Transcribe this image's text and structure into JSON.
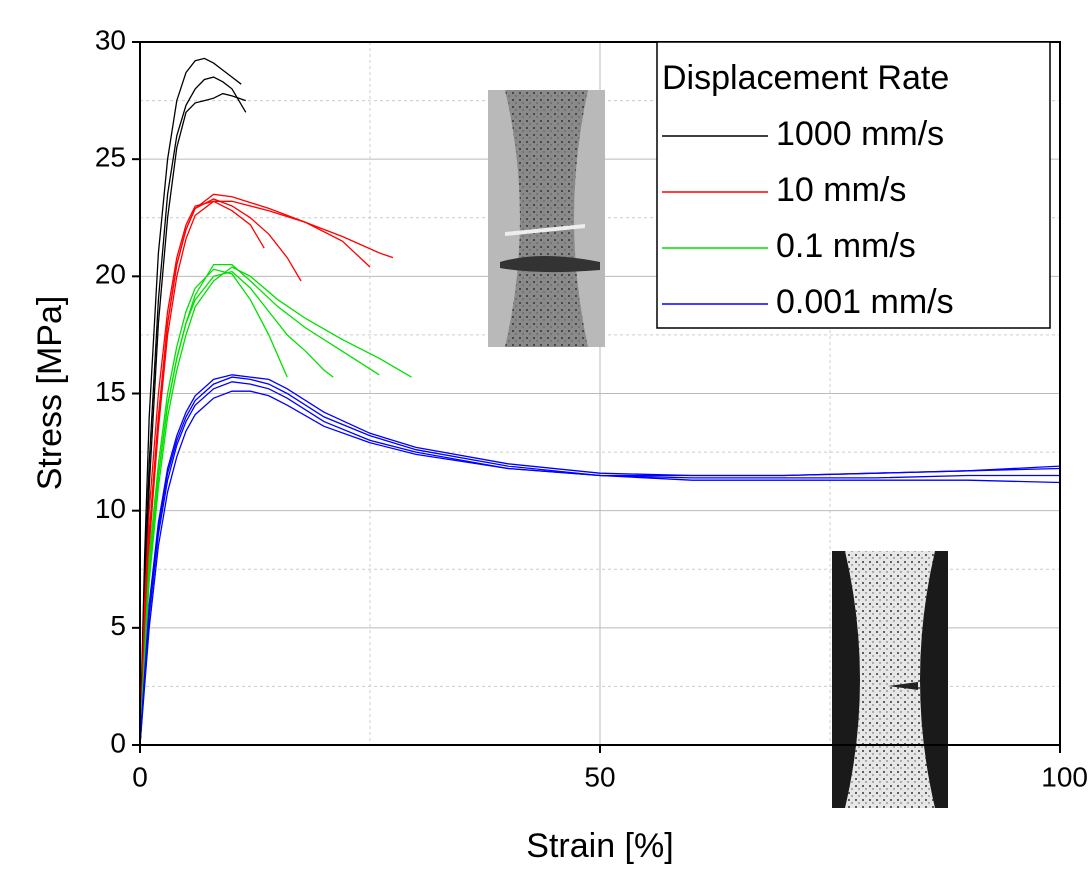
{
  "chart_data": {
    "type": "line",
    "x_label": "Strain [%]",
    "y_label": "Stress [MPa]",
    "xlim": [
      0,
      100
    ],
    "xticks": [
      0,
      50,
      100
    ],
    "ylim": [
      0,
      30
    ],
    "yticks": [
      0,
      5,
      10,
      15,
      20,
      25,
      30
    ],
    "grid": true,
    "minor_grid": true,
    "legend_title": "Displacement Rate",
    "legend_position": "upper right",
    "series": [
      {
        "name": "1000 mm/s",
        "color": "#000000",
        "specimens": [
          {
            "x": [
              0,
              0.5,
              1,
              2,
              3,
              4,
              5,
              6,
              7,
              8,
              9,
              10,
              11
            ],
            "values": [
              0,
              8,
              14,
              21,
              25,
              27.5,
              28.7,
              29.2,
              29.3,
              29.1,
              28.8,
              28.5,
              28.2
            ]
          },
          {
            "x": [
              0,
              0.5,
              1,
              2,
              3,
              4,
              5,
              6,
              7,
              8,
              9,
              10,
              11.5
            ],
            "values": [
              0,
              7,
              12,
              19,
              23.5,
              26,
              27.3,
              28,
              28.4,
              28.5,
              28.3,
              28,
              27
            ]
          },
          {
            "x": [
              0,
              0.5,
              1,
              2,
              3,
              4,
              5,
              6,
              7,
              8,
              9,
              10,
              11.5
            ],
            "values": [
              0,
              6,
              11,
              18,
              22.5,
              25.5,
              27,
              27.4,
              27.5,
              27.6,
              27.8,
              27.7,
              27.5
            ]
          }
        ]
      },
      {
        "name": "10 mm/s",
        "color": "#ff0000",
        "specimens": [
          {
            "x": [
              0,
              0.5,
              1,
              2,
              3,
              4,
              5,
              6,
              8,
              10,
              12,
              13.5
            ],
            "values": [
              0,
              6,
              10,
              15,
              18.5,
              20.8,
              22.2,
              23,
              23.2,
              22.8,
              22.2,
              21.2
            ]
          },
          {
            "x": [
              0,
              0.5,
              1,
              2,
              3,
              4,
              5,
              6,
              8,
              10,
              12,
              14,
              16,
              17.5
            ],
            "values": [
              0,
              5,
              9,
              14,
              18,
              20.5,
              22,
              22.9,
              23.3,
              23,
              22.5,
              21.8,
              20.8,
              19.8
            ]
          },
          {
            "x": [
              0,
              0.5,
              1,
              2,
              3,
              4,
              5,
              6,
              8,
              10,
              14,
              18,
              22,
              25
            ],
            "values": [
              0,
              5,
              9,
              14,
              18,
              20.5,
              22,
              22.9,
              23.5,
              23.4,
              22.9,
              22.3,
              21.5,
              20.4
            ]
          },
          {
            "x": [
              0,
              1,
              2,
              3,
              4,
              5,
              6,
              8,
              10,
              14,
              18,
              22,
              26,
              27.5
            ],
            "values": [
              0,
              8.5,
              13.5,
              17.5,
              20,
              21.6,
              22.6,
              23.2,
              23.2,
              22.8,
              22.3,
              21.7,
              21,
              20.8
            ]
          }
        ]
      },
      {
        "name": "0.1 mm/s",
        "color": "#00e000",
        "specimens": [
          {
            "x": [
              0,
              1,
              2,
              3,
              4,
              5,
              6,
              8,
              10,
              12,
              14,
              16
            ],
            "values": [
              0,
              8,
              12,
              15,
              17,
              18.5,
              19.5,
              20.3,
              20.1,
              19,
              17.5,
              15.7
            ]
          },
          {
            "x": [
              0,
              1,
              2,
              3,
              4,
              5,
              6,
              8,
              10,
              12,
              14,
              16,
              18,
              20,
              21
            ],
            "values": [
              0,
              7.5,
              11.5,
              14.5,
              16.5,
              18,
              19,
              20,
              20.2,
              19.5,
              18.5,
              17.5,
              16.8,
              16,
              15.7
            ]
          },
          {
            "x": [
              0,
              1,
              2,
              3,
              4,
              5,
              6,
              8,
              10,
              12,
              15,
              18,
              22,
              26
            ],
            "values": [
              0,
              7.5,
              11.5,
              14.5,
              16.5,
              18,
              19.2,
              20.5,
              20.5,
              19.8,
              18.7,
              17.8,
              16.8,
              15.8
            ]
          },
          {
            "x": [
              0,
              1,
              2,
              3,
              4,
              5,
              6,
              8,
              10,
              12,
              15,
              18,
              22,
              26,
              29.5
            ],
            "values": [
              0,
              7,
              11,
              14,
              16,
              17.5,
              18.7,
              19.8,
              20.4,
              20,
              19,
              18.2,
              17.3,
              16.5,
              15.7
            ]
          }
        ]
      },
      {
        "name": "0.001 mm/s",
        "color": "#0000ff",
        "specimens": [
          {
            "x": [
              0,
              1,
              2,
              3,
              4,
              5,
              6,
              8,
              10,
              12,
              14,
              16,
              20,
              25,
              30,
              40,
              50,
              60,
              70,
              80,
              90,
              100
            ],
            "values": [
              0,
              6,
              9.5,
              11.8,
              13.2,
              14.2,
              14.9,
              15.6,
              15.8,
              15.7,
              15.6,
              15.2,
              14.2,
              13.3,
              12.7,
              12,
              11.6,
              11.5,
              11.5,
              11.6,
              11.7,
              11.9
            ]
          },
          {
            "x": [
              0,
              1,
              2,
              3,
              4,
              5,
              6,
              8,
              10,
              12,
              14,
              16,
              20,
              25,
              30,
              40,
              50,
              60,
              70,
              80,
              90,
              100
            ],
            "values": [
              0,
              5.8,
              9.3,
              11.6,
              13,
              14,
              14.7,
              15.4,
              15.7,
              15.6,
              15.4,
              15,
              14,
              13.2,
              12.6,
              11.9,
              11.5,
              11.5,
              11.5,
              11.6,
              11.7,
              11.8
            ]
          },
          {
            "x": [
              0,
              1,
              2,
              3,
              4,
              5,
              6,
              8,
              10,
              12,
              14,
              16,
              20,
              25,
              30,
              40,
              50,
              60,
              70,
              80,
              90,
              100
            ],
            "values": [
              0,
              5.5,
              9,
              11.3,
              12.8,
              13.8,
              14.5,
              15.2,
              15.5,
              15.4,
              15.2,
              14.8,
              13.8,
              13,
              12.5,
              11.8,
              11.5,
              11.4,
              11.4,
              11.4,
              11.5,
              11.5
            ]
          },
          {
            "x": [
              0,
              1,
              2,
              3,
              4,
              5,
              6,
              8,
              10,
              12,
              14,
              16,
              20,
              25,
              30,
              40,
              50,
              60,
              70,
              80,
              90,
              100
            ],
            "values": [
              0,
              5,
              8.5,
              10.8,
              12.3,
              13.4,
              14.1,
              14.8,
              15.1,
              15.1,
              14.9,
              14.5,
              13.6,
              12.9,
              12.4,
              11.8,
              11.5,
              11.3,
              11.3,
              11.3,
              11.3,
              11.2
            ]
          }
        ]
      }
    ]
  }
}
